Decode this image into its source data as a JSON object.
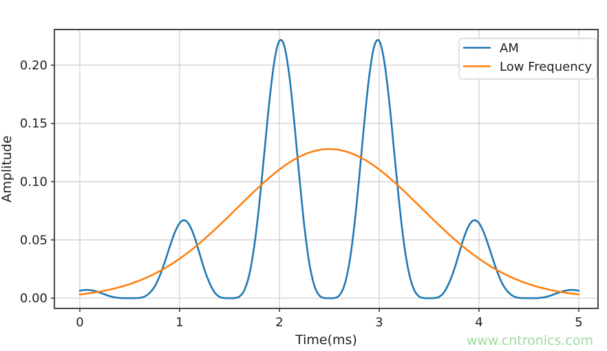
{
  "figure": {
    "background": "#ffffff"
  },
  "watermark": {
    "text": "www.cntronics.com",
    "color": "#9dd89d"
  },
  "chart_data": {
    "type": "line",
    "title": "",
    "xlabel": "Time(ms)",
    "ylabel": "Amplitude",
    "xlim": [
      -0.255,
      5.193
    ],
    "ylim": [
      -0.0088,
      0.2306
    ],
    "grid": true,
    "grid_color": "#cccccc",
    "axis_color": "#2f2f2f",
    "text_color": "#1f1f1f",
    "xticks": {
      "values": [
        0,
        1,
        2,
        3,
        4,
        5
      ],
      "labels": [
        "0",
        "1",
        "2",
        "3",
        "4",
        "5"
      ]
    },
    "yticks": {
      "values": [
        0,
        0.05,
        0.1,
        0.15,
        0.2
      ],
      "labels": [
        "0.00",
        "0.05",
        "0.10",
        "0.15",
        "0.20"
      ]
    },
    "legend": {
      "position": "upper right",
      "entries": [
        "AM",
        "Low Frequency"
      ]
    },
    "x": [
      0,
      0.05,
      0.1,
      0.15,
      0.2,
      0.25,
      0.3,
      0.35,
      0.4,
      0.45,
      0.5,
      0.55,
      0.6,
      0.65,
      0.7,
      0.75,
      0.8,
      0.85,
      0.9,
      0.95,
      1,
      1.05,
      1.1,
      1.15,
      1.2,
      1.25,
      1.3,
      1.35,
      1.4,
      1.45,
      1.5,
      1.55,
      1.6,
      1.65,
      1.7,
      1.75,
      1.8,
      1.85,
      1.9,
      1.95,
      2,
      2.05,
      2.1,
      2.15,
      2.2,
      2.25,
      2.3,
      2.35,
      2.4,
      2.45,
      2.5,
      2.55,
      2.6,
      2.65,
      2.7,
      2.75,
      2.8,
      2.85,
      2.9,
      2.95,
      3,
      3.05,
      3.1,
      3.15,
      3.2,
      3.25,
      3.3,
      3.35,
      3.4,
      3.45,
      3.5,
      3.55,
      3.6,
      3.65,
      3.7,
      3.75,
      3.8,
      3.85,
      3.9,
      3.95,
      4,
      4.05,
      4.1,
      4.15,
      4.2,
      4.25,
      4.3,
      4.35,
      4.4,
      4.45,
      4.5,
      4.55,
      4.6,
      4.65,
      4.7,
      4.75,
      4.8,
      4.85,
      4.9,
      4.95,
      5
    ],
    "series": [
      {
        "name": "AM",
        "color": "#1f77b4",
        "values": [
          0.00639,
          0.00704,
          0.00698,
          0.00618,
          0.00482,
          0.00322,
          0.00175,
          0.00071,
          0.00017,
          1e-05,
          0,
          2e-05,
          0.00028,
          0.00144,
          0.00451,
          0.00997,
          0.01891,
          0.0307,
          0.04386,
          0.056,
          0.06439,
          0.06685,
          0.06252,
          0.05224,
          0.0384,
          0.02416,
          0.01305,
          0.00498,
          0.00114,
          8e-05,
          0,
          9e-05,
          0.00145,
          0.0071,
          0.02094,
          0.04591,
          0.08211,
          0.12572,
          0.16933,
          0.20376,
          0.22085,
          0.21616,
          0.19056,
          0.15009,
          0.10399,
          0.06168,
          0.02984,
          0.01073,
          0.00232,
          0.00015,
          0,
          0.00015,
          0.00232,
          0.01073,
          0.02984,
          0.06168,
          0.10399,
          0.15009,
          0.19056,
          0.21616,
          0.22085,
          0.20376,
          0.16933,
          0.12572,
          0.08211,
          0.04591,
          0.02094,
          0.0071,
          0.00145,
          9e-05,
          0,
          8e-05,
          0.00114,
          0.00498,
          0.01305,
          0.02416,
          0.0384,
          0.05224,
          0.06252,
          0.06685,
          0.06439,
          0.056,
          0.04386,
          0.0307,
          0.01891,
          0.00997,
          0.00451,
          0.00144,
          0.00028,
          2e-05,
          0,
          1e-05,
          0.00017,
          0.00071,
          0.00175,
          0.00322,
          0.00482,
          0.00618,
          0.00698,
          0.00704,
          0.00639
        ]
      },
      {
        "name": "Low Frequency",
        "color": "#ff7f0e",
        "values": [
          0.00319,
          0.0037,
          0.00427,
          0.00491,
          0.00563,
          0.00644,
          0.00734,
          0.00835,
          0.00946,
          0.0107,
          0.01206,
          0.01355,
          0.01518,
          0.01696,
          0.01889,
          0.02097,
          0.02322,
          0.02564,
          0.02822,
          0.03097,
          0.03389,
          0.03697,
          0.04022,
          0.04363,
          0.04718,
          0.05087,
          0.05468,
          0.05861,
          0.06264,
          0.06674,
          0.07091,
          0.07511,
          0.07933,
          0.08354,
          0.08771,
          0.09182,
          0.09583,
          0.09973,
          0.10348,
          0.10706,
          0.11043,
          0.11357,
          0.11646,
          0.11906,
          0.12137,
          0.12336,
          0.12501,
          0.12631,
          0.12725,
          0.12781,
          0.128,
          0.12781,
          0.12725,
          0.12631,
          0.12501,
          0.12336,
          0.12137,
          0.11906,
          0.11646,
          0.11357,
          0.11043,
          0.10706,
          0.10348,
          0.09973,
          0.09583,
          0.09182,
          0.08771,
          0.08354,
          0.07933,
          0.07511,
          0.07091,
          0.06674,
          0.06264,
          0.05861,
          0.05468,
          0.05087,
          0.04718,
          0.04363,
          0.04022,
          0.03697,
          0.03389,
          0.03097,
          0.02822,
          0.02564,
          0.02322,
          0.02097,
          0.01889,
          0.01696,
          0.01518,
          0.01355,
          0.01206,
          0.0107,
          0.00946,
          0.00835,
          0.00734,
          0.00644,
          0.00563,
          0.00491,
          0.00427,
          0.0037,
          0.00319
        ]
      }
    ]
  }
}
